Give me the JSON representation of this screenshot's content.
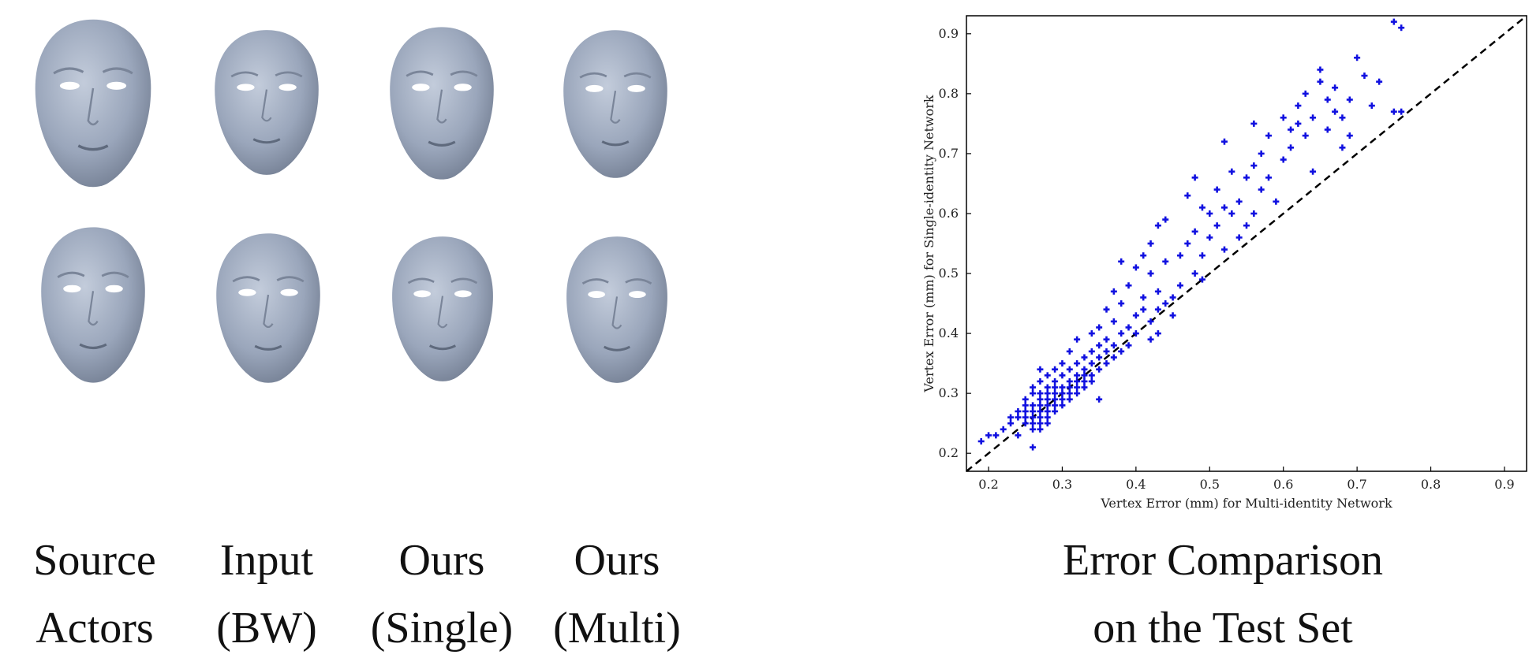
{
  "columns": [
    {
      "line1": "Source",
      "line2": "Actors"
    },
    {
      "line1": "Input",
      "line2": "(BW)"
    },
    {
      "line1": "Ours",
      "line2": "(Single)"
    },
    {
      "line1": "Ours",
      "line2": "(Multi)"
    }
  ],
  "chart_caption": {
    "line1": "Error Comparison",
    "line2": "on the Test Set"
  },
  "colors": {
    "face": "#9aa6bb",
    "points": "#1010e0",
    "diagonal": "#000000"
  },
  "chart_data": {
    "type": "scatter",
    "xlabel": "Vertex Error (mm) for Multi-identity Network",
    "ylabel": "Vertex Error (mm) for Single-identity Network",
    "xlim": [
      0.17,
      0.93
    ],
    "ylim": [
      0.17,
      0.93
    ],
    "xticks": [
      "0.2",
      "0.3",
      "0.4",
      "0.5",
      "0.6",
      "0.7",
      "0.8",
      "0.9"
    ],
    "yticks": [
      "0.2",
      "0.3",
      "0.4",
      "0.5",
      "0.6",
      "0.7",
      "0.8",
      "0.9"
    ],
    "reference_line": "y = x (dashed)",
    "series": [
      {
        "marker": "plus",
        "points": [
          [
            0.19,
            0.22
          ],
          [
            0.2,
            0.23
          ],
          [
            0.21,
            0.23
          ],
          [
            0.22,
            0.24
          ],
          [
            0.23,
            0.25
          ],
          [
            0.23,
            0.26
          ],
          [
            0.24,
            0.23
          ],
          [
            0.24,
            0.26
          ],
          [
            0.24,
            0.27
          ],
          [
            0.25,
            0.25
          ],
          [
            0.25,
            0.26
          ],
          [
            0.25,
            0.27
          ],
          [
            0.25,
            0.28
          ],
          [
            0.25,
            0.29
          ],
          [
            0.26,
            0.21
          ],
          [
            0.26,
            0.24
          ],
          [
            0.26,
            0.25
          ],
          [
            0.26,
            0.26
          ],
          [
            0.26,
            0.27
          ],
          [
            0.26,
            0.28
          ],
          [
            0.26,
            0.3
          ],
          [
            0.26,
            0.31
          ],
          [
            0.27,
            0.24
          ],
          [
            0.27,
            0.25
          ],
          [
            0.27,
            0.26
          ],
          [
            0.27,
            0.27
          ],
          [
            0.27,
            0.28
          ],
          [
            0.27,
            0.29
          ],
          [
            0.27,
            0.3
          ],
          [
            0.27,
            0.32
          ],
          [
            0.27,
            0.34
          ],
          [
            0.28,
            0.25
          ],
          [
            0.28,
            0.26
          ],
          [
            0.28,
            0.27
          ],
          [
            0.28,
            0.28
          ],
          [
            0.28,
            0.29
          ],
          [
            0.28,
            0.3
          ],
          [
            0.28,
            0.31
          ],
          [
            0.28,
            0.33
          ],
          [
            0.29,
            0.27
          ],
          [
            0.29,
            0.28
          ],
          [
            0.29,
            0.29
          ],
          [
            0.29,
            0.3
          ],
          [
            0.29,
            0.31
          ],
          [
            0.29,
            0.32
          ],
          [
            0.29,
            0.34
          ],
          [
            0.3,
            0.28
          ],
          [
            0.3,
            0.29
          ],
          [
            0.3,
            0.3
          ],
          [
            0.3,
            0.31
          ],
          [
            0.3,
            0.33
          ],
          [
            0.3,
            0.35
          ],
          [
            0.31,
            0.29
          ],
          [
            0.31,
            0.3
          ],
          [
            0.31,
            0.31
          ],
          [
            0.31,
            0.32
          ],
          [
            0.31,
            0.34
          ],
          [
            0.31,
            0.37
          ],
          [
            0.32,
            0.3
          ],
          [
            0.32,
            0.31
          ],
          [
            0.32,
            0.32
          ],
          [
            0.32,
            0.33
          ],
          [
            0.32,
            0.35
          ],
          [
            0.32,
            0.39
          ],
          [
            0.33,
            0.31
          ],
          [
            0.33,
            0.32
          ],
          [
            0.33,
            0.33
          ],
          [
            0.33,
            0.34
          ],
          [
            0.33,
            0.36
          ],
          [
            0.34,
            0.32
          ],
          [
            0.34,
            0.33
          ],
          [
            0.34,
            0.35
          ],
          [
            0.34,
            0.37
          ],
          [
            0.34,
            0.4
          ],
          [
            0.35,
            0.29
          ],
          [
            0.35,
            0.34
          ],
          [
            0.35,
            0.36
          ],
          [
            0.35,
            0.38
          ],
          [
            0.35,
            0.41
          ],
          [
            0.36,
            0.35
          ],
          [
            0.36,
            0.37
          ],
          [
            0.36,
            0.39
          ],
          [
            0.36,
            0.44
          ],
          [
            0.37,
            0.36
          ],
          [
            0.37,
            0.38
          ],
          [
            0.37,
            0.42
          ],
          [
            0.37,
            0.47
          ],
          [
            0.38,
            0.37
          ],
          [
            0.38,
            0.4
          ],
          [
            0.38,
            0.45
          ],
          [
            0.38,
            0.52
          ],
          [
            0.39,
            0.38
          ],
          [
            0.39,
            0.41
          ],
          [
            0.39,
            0.48
          ],
          [
            0.4,
            0.4
          ],
          [
            0.4,
            0.43
          ],
          [
            0.4,
            0.51
          ],
          [
            0.41,
            0.44
          ],
          [
            0.41,
            0.46
          ],
          [
            0.41,
            0.53
          ],
          [
            0.42,
            0.39
          ],
          [
            0.42,
            0.42
          ],
          [
            0.42,
            0.5
          ],
          [
            0.42,
            0.55
          ],
          [
            0.43,
            0.4
          ],
          [
            0.43,
            0.44
          ],
          [
            0.43,
            0.47
          ],
          [
            0.43,
            0.58
          ],
          [
            0.44,
            0.45
          ],
          [
            0.44,
            0.52
          ],
          [
            0.44,
            0.59
          ],
          [
            0.45,
            0.43
          ],
          [
            0.45,
            0.46
          ],
          [
            0.46,
            0.48
          ],
          [
            0.46,
            0.53
          ],
          [
            0.47,
            0.55
          ],
          [
            0.47,
            0.63
          ],
          [
            0.48,
            0.5
          ],
          [
            0.48,
            0.57
          ],
          [
            0.48,
            0.66
          ],
          [
            0.49,
            0.49
          ],
          [
            0.49,
            0.53
          ],
          [
            0.49,
            0.61
          ],
          [
            0.5,
            0.56
          ],
          [
            0.5,
            0.6
          ],
          [
            0.51,
            0.58
          ],
          [
            0.51,
            0.64
          ],
          [
            0.52,
            0.54
          ],
          [
            0.52,
            0.61
          ],
          [
            0.52,
            0.72
          ],
          [
            0.53,
            0.6
          ],
          [
            0.53,
            0.67
          ],
          [
            0.54,
            0.56
          ],
          [
            0.54,
            0.62
          ],
          [
            0.55,
            0.58
          ],
          [
            0.55,
            0.66
          ],
          [
            0.56,
            0.6
          ],
          [
            0.56,
            0.68
          ],
          [
            0.56,
            0.75
          ],
          [
            0.57,
            0.64
          ],
          [
            0.57,
            0.7
          ],
          [
            0.58,
            0.66
          ],
          [
            0.58,
            0.73
          ],
          [
            0.59,
            0.62
          ],
          [
            0.6,
            0.69
          ],
          [
            0.6,
            0.76
          ],
          [
            0.61,
            0.71
          ],
          [
            0.61,
            0.74
          ],
          [
            0.62,
            0.75
          ],
          [
            0.62,
            0.78
          ],
          [
            0.63,
            0.73
          ],
          [
            0.63,
            0.8
          ],
          [
            0.64,
            0.67
          ],
          [
            0.64,
            0.76
          ],
          [
            0.65,
            0.82
          ],
          [
            0.65,
            0.84
          ],
          [
            0.66,
            0.74
          ],
          [
            0.66,
            0.79
          ],
          [
            0.67,
            0.81
          ],
          [
            0.67,
            0.77
          ],
          [
            0.68,
            0.71
          ],
          [
            0.68,
            0.76
          ],
          [
            0.69,
            0.73
          ],
          [
            0.69,
            0.79
          ],
          [
            0.7,
            0.86
          ],
          [
            0.71,
            0.83
          ],
          [
            0.72,
            0.78
          ],
          [
            0.73,
            0.82
          ],
          [
            0.75,
            0.92
          ],
          [
            0.75,
            0.77
          ],
          [
            0.76,
            0.91
          ],
          [
            0.76,
            0.77
          ]
        ]
      }
    ]
  }
}
